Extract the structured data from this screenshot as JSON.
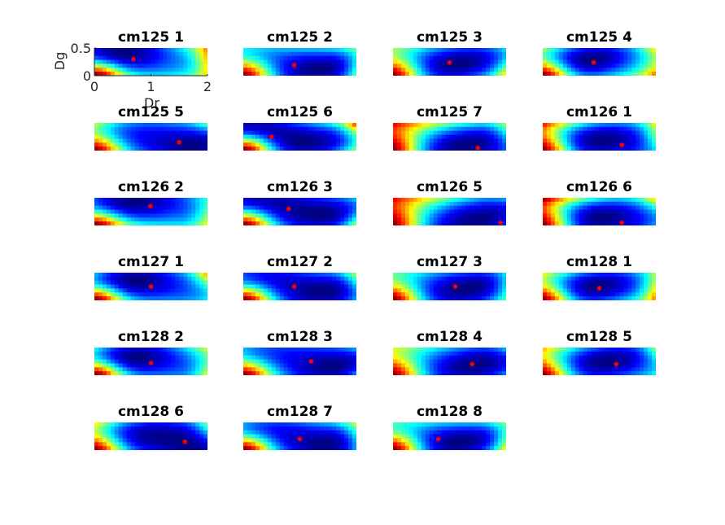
{
  "chart_data": {
    "type": "heatmap",
    "colormap": "jet",
    "xlabel": "Dr",
    "ylabel": "Dg",
    "xlim": [
      0,
      2
    ],
    "ylim": [
      0,
      0.5
    ],
    "xticks": [
      "0",
      "1",
      "2"
    ],
    "yticks": [
      "0",
      "0.5"
    ],
    "marker_color": "#ff0000",
    "panels": [
      {
        "title": "cm125 1",
        "optimum": [
          0.69,
          0.3
        ]
      },
      {
        "title": "cm125 2",
        "optimum": [
          0.9,
          0.19
        ]
      },
      {
        "title": "cm125 3",
        "optimum": [
          1.0,
          0.24
        ]
      },
      {
        "title": "cm125 4",
        "optimum": [
          0.9,
          0.24
        ]
      },
      {
        "title": "cm125 5",
        "optimum": [
          1.5,
          0.15
        ]
      },
      {
        "title": "cm125 6",
        "optimum": [
          0.5,
          0.25
        ]
      },
      {
        "title": "cm125 7",
        "optimum": [
          1.5,
          0.05
        ]
      },
      {
        "title": "cm126 1",
        "optimum": [
          1.4,
          0.1
        ]
      },
      {
        "title": "cm126 2",
        "optimum": [
          0.99,
          0.35
        ]
      },
      {
        "title": "cm126 3",
        "optimum": [
          0.8,
          0.3
        ]
      },
      {
        "title": "cm126 5",
        "optimum": [
          1.9,
          0.05
        ]
      },
      {
        "title": "cm126 6",
        "optimum": [
          1.4,
          0.05
        ]
      },
      {
        "title": "cm127 1",
        "optimum": [
          1.0,
          0.25
        ]
      },
      {
        "title": "cm127 2",
        "optimum": [
          0.9,
          0.25
        ]
      },
      {
        "title": "cm127 3",
        "optimum": [
          1.1,
          0.25
        ]
      },
      {
        "title": "cm128 1",
        "optimum": [
          1.0,
          0.22
        ]
      },
      {
        "title": "cm128 2",
        "optimum": [
          1.0,
          0.22
        ]
      },
      {
        "title": "cm128 3",
        "optimum": [
          1.2,
          0.25
        ]
      },
      {
        "title": "cm128 4",
        "optimum": [
          1.4,
          0.2
        ]
      },
      {
        "title": "cm128 5",
        "optimum": [
          1.3,
          0.2
        ]
      },
      {
        "title": "cm128 6",
        "optimum": [
          1.6,
          0.15
        ]
      },
      {
        "title": "cm128 7",
        "optimum": [
          1.0,
          0.2
        ]
      },
      {
        "title": "cm128 8",
        "optimum": [
          0.8,
          0.2
        ]
      }
    ]
  }
}
